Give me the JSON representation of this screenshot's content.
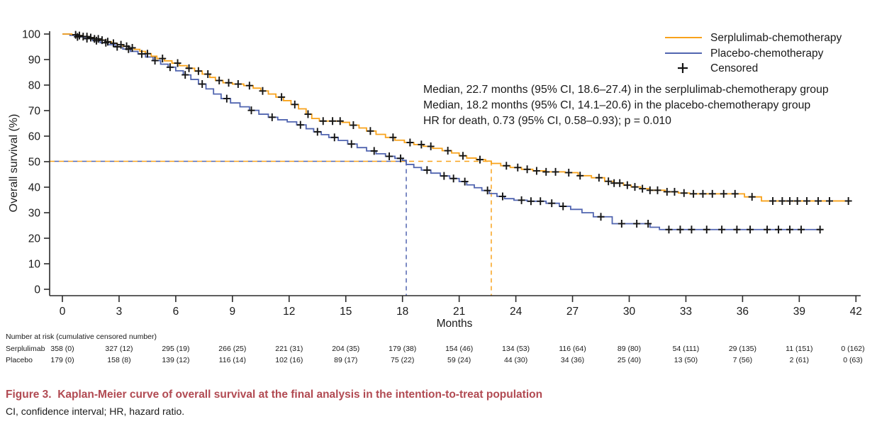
{
  "figure": {
    "caption": "Figure 3.  Kaplan-Meier curve of overall survival at the final analysis in the intention-to-treat population",
    "note": "CI, confidence interval; HR, hazard ratio."
  },
  "chart_data": {
    "type": "line",
    "subtype": "kaplan-meier-step",
    "xlabel": "Months",
    "ylabel": "Overall survival (%)",
    "xlim": [
      0,
      42
    ],
    "ylim": [
      0,
      100
    ],
    "xticks": [
      0,
      3,
      6,
      9,
      12,
      15,
      18,
      21,
      24,
      27,
      30,
      33,
      36,
      39,
      42
    ],
    "yticks": [
      0,
      10,
      20,
      30,
      40,
      50,
      60,
      70,
      80,
      90,
      100
    ],
    "grid": false,
    "legend_position": "top-right",
    "legend": [
      {
        "label": "Serplulimab-chemotherapy",
        "color": "#F8A21B",
        "type": "line"
      },
      {
        "label": "Placebo-chemotherapy",
        "color": "#5165B0",
        "type": "line"
      },
      {
        "label": "Censored",
        "color": "#141414",
        "type": "plus-marker"
      }
    ],
    "annotations": [
      "Median, 22.7 months (95% CI, 18.6–27.4) in the serplulimab-chemotherapy group",
      "Median, 18.2 months (95% CI, 14.1–20.6) in the placebo-chemotherapy group",
      "HR for death, 0.73 (95% CI, 0.58–0.93); p = 0.010"
    ],
    "reference_survival_pct": 50,
    "series": [
      {
        "name": "Serplulimab-chemotherapy",
        "color": "#F8A21B",
        "median_months": 22.7,
        "end_month": 41.7,
        "steps": [
          [
            0,
            100
          ],
          [
            0.5,
            99.7
          ],
          [
            0.8,
            99.4
          ],
          [
            1.1,
            99
          ],
          [
            1.4,
            98.6
          ],
          [
            1.7,
            98.1
          ],
          [
            2,
            97.6
          ],
          [
            2.3,
            97
          ],
          [
            2.6,
            96.4
          ],
          [
            2.9,
            95.8
          ],
          [
            3.2,
            95.2
          ],
          [
            3.5,
            94.6
          ],
          [
            3.8,
            94
          ],
          [
            4.1,
            93.2
          ],
          [
            4.4,
            92.3
          ],
          [
            4.7,
            91.3
          ],
          [
            5,
            90.4
          ],
          [
            5.4,
            89.5
          ],
          [
            5.8,
            88.6
          ],
          [
            6.2,
            87.6
          ],
          [
            6.6,
            86.6
          ],
          [
            7,
            85.5
          ],
          [
            7.4,
            84.3
          ],
          [
            7.8,
            83
          ],
          [
            8.1,
            81.8
          ],
          [
            8.5,
            80.9
          ],
          [
            9,
            80.4
          ],
          [
            9.6,
            79.8
          ],
          [
            10.1,
            78.8
          ],
          [
            10.5,
            77.7
          ],
          [
            10.9,
            76.5
          ],
          [
            11.3,
            75.3
          ],
          [
            11.7,
            73.9
          ],
          [
            12.1,
            72.4
          ],
          [
            12.5,
            70.7
          ],
          [
            12.9,
            68.6
          ],
          [
            13.2,
            66.9
          ],
          [
            13.6,
            65.9
          ],
          [
            14.8,
            65.4
          ],
          [
            15.2,
            64.3
          ],
          [
            15.7,
            63.2
          ],
          [
            16.1,
            62
          ],
          [
            16.6,
            60.7
          ],
          [
            17.1,
            59.5
          ],
          [
            17.6,
            58.4
          ],
          [
            18.1,
            57.5
          ],
          [
            18.6,
            56.7
          ],
          [
            19.1,
            56
          ],
          [
            19.6,
            55.2
          ],
          [
            20.1,
            54.3
          ],
          [
            20.6,
            53.4
          ],
          [
            21,
            52.3
          ],
          [
            21.4,
            51.4
          ],
          [
            21.9,
            50.8
          ],
          [
            22.4,
            50.2
          ],
          [
            22.7,
            49.3
          ],
          [
            23.2,
            48.4
          ],
          [
            23.7,
            47.7
          ],
          [
            24.3,
            47
          ],
          [
            24.9,
            46.4
          ],
          [
            25.6,
            46
          ],
          [
            26.6,
            45.7
          ],
          [
            27.3,
            44.5
          ],
          [
            28,
            43.7
          ],
          [
            28.7,
            42.3
          ],
          [
            29.2,
            41.6
          ],
          [
            29.7,
            40.8
          ],
          [
            30.1,
            40.1
          ],
          [
            30.6,
            39.4
          ],
          [
            31.1,
            38.8
          ],
          [
            31.9,
            38.2
          ],
          [
            32.6,
            37.7
          ],
          [
            33.2,
            37.4
          ],
          [
            36.1,
            36.2
          ],
          [
            37,
            34.6
          ]
        ],
        "censor_months": [
          0.7,
          0.9,
          1.1,
          1.3,
          1.5,
          1.7,
          1.9,
          2.1,
          2.4,
          2.7,
          3.1,
          3.4,
          3.7,
          4.5,
          5.3,
          6.1,
          6.7,
          7.2,
          7.7,
          8.3,
          8.8,
          9.3,
          9.9,
          10.6,
          11.6,
          12.3,
          13,
          13.8,
          14.3,
          14.7,
          15.4,
          16.3,
          17.5,
          18.4,
          19,
          19.5,
          20.4,
          21.2,
          22.1,
          23.5,
          24.1,
          24.6,
          25.1,
          25.6,
          26.1,
          26.8,
          27.4,
          28.4,
          28.9,
          29.2,
          29.5,
          29.9,
          30.3,
          30.7,
          31.1,
          31.5,
          32,
          32.4,
          32.9,
          33.4,
          33.9,
          34.4,
          35,
          35.6,
          36.5,
          37.6,
          38.1,
          38.5,
          38.9,
          39.4,
          40,
          40.6,
          41.6
        ]
      },
      {
        "name": "Placebo-chemotherapy",
        "color": "#5165B0",
        "median_months": 18.2,
        "end_month": 40.2,
        "steps": [
          [
            0,
            100
          ],
          [
            0.4,
            99.5
          ],
          [
            0.8,
            98.9
          ],
          [
            1.2,
            98.2
          ],
          [
            1.6,
            97.4
          ],
          [
            2,
            96.6
          ],
          [
            2.4,
            95.8
          ],
          [
            2.8,
            95
          ],
          [
            3.2,
            94.1
          ],
          [
            3.6,
            93.2
          ],
          [
            4,
            92.2
          ],
          [
            4.4,
            91
          ],
          [
            4.8,
            89.6
          ],
          [
            5.2,
            88.2
          ],
          [
            5.6,
            87
          ],
          [
            6,
            85.6
          ],
          [
            6.4,
            84
          ],
          [
            6.8,
            82.2
          ],
          [
            7.2,
            80.4
          ],
          [
            7.6,
            78.5
          ],
          [
            8,
            76.5
          ],
          [
            8.4,
            74.7
          ],
          [
            8.9,
            73
          ],
          [
            9.4,
            71.5
          ],
          [
            9.9,
            70.1
          ],
          [
            10.4,
            68.6
          ],
          [
            10.9,
            67.4
          ],
          [
            11.4,
            66.4
          ],
          [
            11.9,
            65.6
          ],
          [
            12.4,
            64.4
          ],
          [
            12.9,
            62.9
          ],
          [
            13.3,
            61.7
          ],
          [
            13.7,
            60.6
          ],
          [
            14.1,
            59.5
          ],
          [
            14.6,
            58.3
          ],
          [
            15.1,
            56.9
          ],
          [
            15.6,
            55.5
          ],
          [
            16.1,
            54.2
          ],
          [
            16.6,
            53.1
          ],
          [
            17.1,
            52.1
          ],
          [
            17.6,
            51.3
          ],
          [
            18,
            50.5
          ],
          [
            18.2,
            48.9
          ],
          [
            18.6,
            47.7
          ],
          [
            19,
            46.7
          ],
          [
            19.5,
            45.5
          ],
          [
            20,
            44.4
          ],
          [
            20.5,
            43.4
          ],
          [
            21,
            42.2
          ],
          [
            21.4,
            40.9
          ],
          [
            21.8,
            39.8
          ],
          [
            22.2,
            38.7
          ],
          [
            22.6,
            37.5
          ],
          [
            23,
            36.4
          ],
          [
            23.4,
            35.5
          ],
          [
            23.9,
            34.9
          ],
          [
            24.6,
            34.5
          ],
          [
            25.6,
            33.7
          ],
          [
            26.3,
            32.5
          ],
          [
            26.9,
            31.3
          ],
          [
            27.5,
            30
          ],
          [
            28.1,
            28.4
          ],
          [
            29.1,
            25.7
          ],
          [
            31.1,
            24.3
          ],
          [
            31.6,
            23.4
          ]
        ],
        "censor_months": [
          0.8,
          1.3,
          1.8,
          2.3,
          2.9,
          3.5,
          4.2,
          4.9,
          5.7,
          6.5,
          7.4,
          8.7,
          10,
          11.1,
          12.6,
          13.5,
          14.4,
          15.3,
          16.5,
          17.3,
          17.9,
          19.3,
          20.2,
          20.7,
          21.3,
          22.5,
          23.3,
          24.3,
          24.8,
          25.3,
          25.9,
          26.5,
          28.5,
          29.6,
          30.4,
          31,
          32.1,
          32.7,
          33.3,
          34.1,
          34.9,
          35.7,
          36.4,
          37.3,
          37.9,
          38.5,
          39.1,
          40.1
        ]
      }
    ]
  },
  "risk_table": {
    "header": "Number at risk (cumulative censored number)",
    "months": [
      0,
      3,
      6,
      9,
      12,
      15,
      18,
      21,
      24,
      27,
      30,
      33,
      36,
      39,
      42
    ],
    "rows": [
      {
        "label": "Serplulimab",
        "values": [
          "358 (0)",
          "327 (12)",
          "295 (19)",
          "266 (25)",
          "221 (31)",
          "204 (35)",
          "179 (38)",
          "154 (46)",
          "134 (53)",
          "116 (64)",
          "89 (80)",
          "54 (111)",
          "29 (135)",
          "11 (151)",
          "0 (162)"
        ]
      },
      {
        "label": "Placebo",
        "values": [
          "179 (0)",
          "158 (8)",
          "139 (12)",
          "116 (14)",
          "102 (16)",
          "89 (17)",
          "75 (22)",
          "59 (24)",
          "44 (30)",
          "34 (36)",
          "25 (40)",
          "13 (50)",
          "7 (56)",
          "2 (61)",
          "0 (63)"
        ]
      }
    ]
  }
}
